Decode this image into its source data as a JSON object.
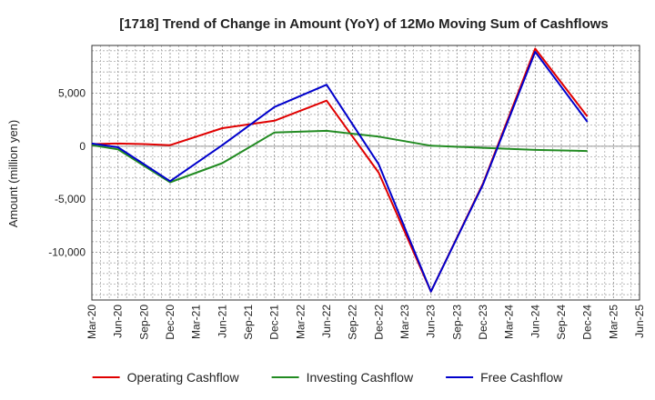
{
  "chart_data": {
    "type": "line",
    "title": "[1718]  Trend of Change in Amount (YoY) of 12Mo Moving Sum of Cashflows",
    "xlabel": "",
    "ylabel": "Amount (million yen)",
    "ylim": [
      -14500,
      9500
    ],
    "yticks": [
      5000,
      0,
      -5000,
      -10000
    ],
    "ytick_labels": [
      "5,000",
      "0",
      "-5,000",
      "-10,000"
    ],
    "categories": [
      "Mar-20",
      "Jun-20",
      "Sep-20",
      "Dec-20",
      "Mar-21",
      "Jun-21",
      "Sep-21",
      "Dec-21",
      "Mar-22",
      "Jun-22",
      "Sep-22",
      "Dec-22",
      "Mar-23",
      "Jun-23",
      "Sep-23",
      "Dec-23",
      "Mar-24",
      "Jun-24",
      "Sep-24",
      "Dec-24",
      "Mar-25",
      "Jun-25"
    ],
    "grid": true,
    "legend_position": "bottom",
    "series": [
      {
        "name": "Operating Cashflow",
        "color": "#e00000",
        "values": [
          200,
          250,
          200,
          100,
          null,
          1700,
          null,
          2400,
          null,
          4300,
          null,
          -2500,
          null,
          -13700,
          null,
          -3500,
          null,
          9200,
          null,
          2800,
          null,
          null
        ]
      },
      {
        "name": "Investing Cashflow",
        "color": "#228b22",
        "values": [
          100,
          -300,
          null,
          -3400,
          null,
          -1600,
          null,
          1300,
          null,
          1450,
          null,
          900,
          null,
          50,
          null,
          -150,
          null,
          -350,
          null,
          -450,
          null,
          null
        ]
      },
      {
        "name": "Free Cashflow",
        "color": "#0000cc",
        "values": [
          250,
          -100,
          null,
          -3300,
          null,
          100,
          null,
          3700,
          null,
          5800,
          null,
          -1700,
          null,
          -13700,
          null,
          -3600,
          null,
          8900,
          null,
          2300,
          null,
          null
        ]
      }
    ]
  }
}
